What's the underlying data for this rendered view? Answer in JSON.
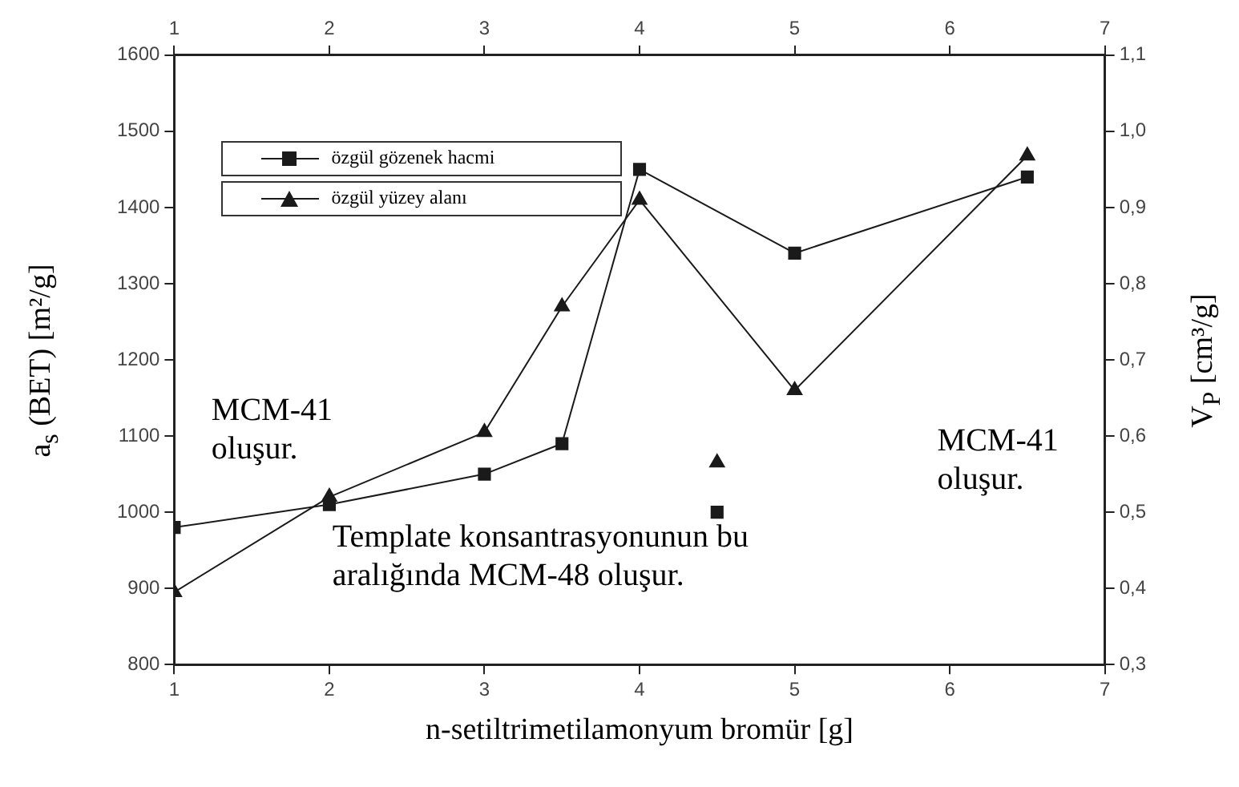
{
  "chart_data": {
    "type": "line",
    "xlabel": "n-setiltrimetilamonyum bromür [g]",
    "ylabel": "a$_{s}$ (BET) [m²/g]",
    "y2label": "V$_{P}$ [cm³/g]",
    "xlim": [
      1,
      7
    ],
    "xticks": [
      1,
      2,
      3,
      4,
      5,
      6,
      7
    ],
    "x2lim": [
      1,
      7
    ],
    "x2ticks": [
      1,
      2,
      3,
      4,
      5,
      6,
      7
    ],
    "ylim": [
      800,
      1600
    ],
    "yticks": [
      800,
      900,
      1000,
      1100,
      1200,
      1300,
      1400,
      1500,
      1600
    ],
    "y2lim": [
      0.3,
      1.1
    ],
    "y2ticks": [
      {
        "value": 0.3,
        "label": "0,3"
      },
      {
        "value": 0.4,
        "label": "0,4"
      },
      {
        "value": 0.5,
        "label": "0,5"
      },
      {
        "value": 0.6,
        "label": "0,6"
      },
      {
        "value": 0.7,
        "label": "0,7"
      },
      {
        "value": 0.8,
        "label": "0,8"
      },
      {
        "value": 0.9,
        "label": "0,9"
      },
      {
        "value": 1.0,
        "label": "1,0"
      },
      {
        "value": 1.1,
        "label": "1,1"
      }
    ],
    "series": [
      {
        "name": "özgül gözenek hacmi",
        "color": "#1a1a1a",
        "marker": "square",
        "axis": "y2",
        "x": [
          1,
          2,
          3,
          3.5,
          4,
          5,
          6.5
        ],
        "values": [
          0.48,
          0.51,
          0.55,
          0.59,
          0.95,
          0.84,
          0.94
        ]
      },
      {
        "name": "özgül yüzey alanı",
        "color": "#1a1a1a",
        "marker": "triangle",
        "axis": "y",
        "x": [
          1,
          2,
          3,
          3.5,
          4,
          5,
          6.5
        ],
        "values": [
          895,
          1020,
          1105,
          1270,
          1410,
          1160,
          1468
        ]
      },
      {
        "type": "scatter",
        "color": "#1a1a1a",
        "marker": "triangle",
        "axis": "y",
        "x": [
          4.5
        ],
        "values": [
          1065
        ]
      },
      {
        "type": "scatter",
        "color": "#1a1a1a",
        "marker": "square",
        "axis": "y2",
        "x": [
          4.5
        ],
        "values": [
          0.5
        ]
      }
    ],
    "legend": "top left",
    "grid": false,
    "line_style": "solid",
    "annotations": [
      "MCM-41\noluşur.",
      "Template konsantrasyonunun bu\naralığında MCM-48 oluşur.",
      "MCM-41\noluşur."
    ]
  }
}
